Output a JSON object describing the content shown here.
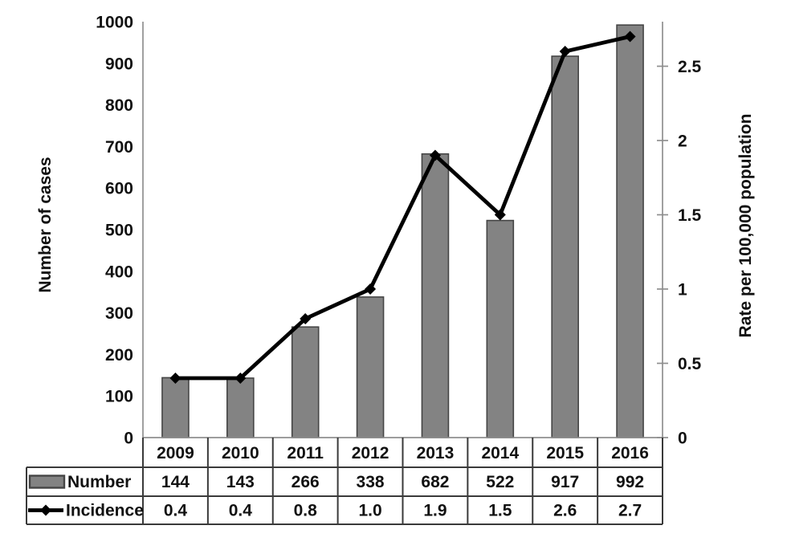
{
  "figure": {
    "left_axis": {
      "title": "Number of cases",
      "ticks": [
        "0",
        "100",
        "200",
        "300",
        "400",
        "500",
        "600",
        "700",
        "800",
        "900",
        "1000"
      ],
      "max": 1000
    },
    "right_axis": {
      "title": "Rate per 100,000 population",
      "ticks": [
        "0",
        "0.5",
        "1",
        "1.5",
        "2",
        "2.5"
      ],
      "axis_max": 2.8
    }
  },
  "chart_data": {
    "type": "bar+line",
    "title": "",
    "xlabel": "",
    "categories": [
      "2009",
      "2010",
      "2011",
      "2012",
      "2013",
      "2014",
      "2015",
      "2016"
    ],
    "series": [
      {
        "name": "Number",
        "type": "bar",
        "axis": "left",
        "values": [
          144,
          143,
          266,
          338,
          682,
          522,
          917,
          992
        ]
      },
      {
        "name": "Incidence",
        "type": "line",
        "axis": "right",
        "values": [
          0.4,
          0.4,
          0.8,
          1.0,
          1.9,
          1.5,
          2.6,
          2.7
        ]
      }
    ],
    "left_ylim": [
      0,
      1000
    ],
    "right_ylim": [
      0,
      2.8
    ],
    "grid": false,
    "legend_position": "table-left"
  },
  "table": {
    "row_labels": [
      "Number",
      "Incidence"
    ],
    "display_values": {
      "Number": [
        "144",
        "143",
        "266",
        "338",
        "682",
        "522",
        "917",
        "992"
      ],
      "Incidence": [
        "0.4",
        "0.4",
        "0.8",
        "1.0",
        "1.9",
        "1.5",
        "2.6",
        "2.7"
      ]
    }
  },
  "colors": {
    "bar_fill": "#838383",
    "bar_stroke": "#454545",
    "line": "#000000",
    "marker": "#000000",
    "axis_line": "#8f8f8f",
    "table_border": "#3a3a3a",
    "text": "#111111"
  }
}
